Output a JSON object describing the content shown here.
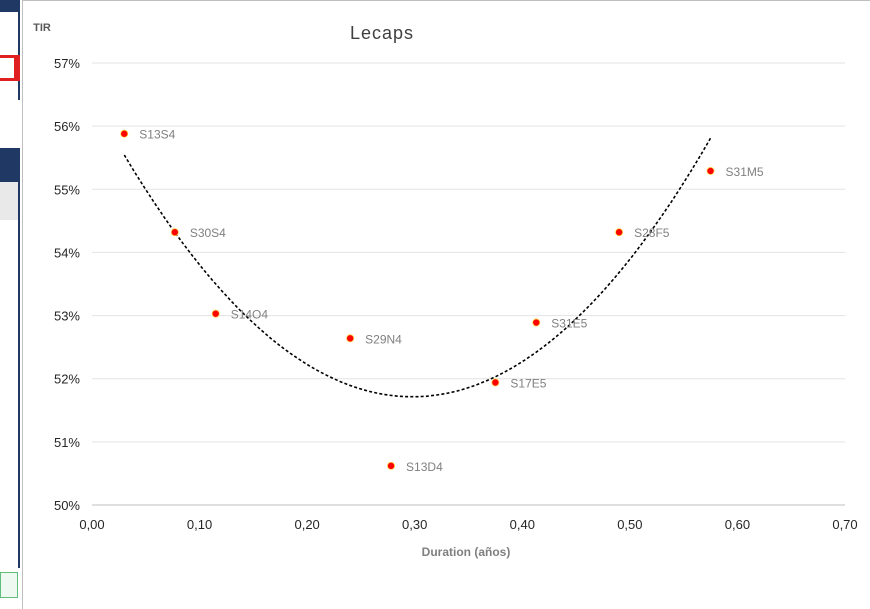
{
  "chart_data": {
    "type": "scatter",
    "title": "Lecaps",
    "ylabel": "TIR",
    "xlabel": "Duration (años)",
    "xlim": [
      0,
      0.7
    ],
    "ylim": [
      0.5,
      0.57
    ],
    "x_ticks": [
      "0,00",
      "0,10",
      "0,20",
      "0,30",
      "0,40",
      "0,50",
      "0,60",
      "0,70"
    ],
    "y_ticks": [
      "50%",
      "51%",
      "52%",
      "53%",
      "54%",
      "55%",
      "56%",
      "57%"
    ],
    "grid": "horizontal",
    "points": [
      {
        "label": "S13S4",
        "x": 0.03,
        "y": 0.5588
      },
      {
        "label": "S30S4",
        "x": 0.077,
        "y": 0.5432
      },
      {
        "label": "S14O4",
        "x": 0.115,
        "y": 0.5303
      },
      {
        "label": "S29N4",
        "x": 0.24,
        "y": 0.5264
      },
      {
        "label": "S13D4",
        "x": 0.278,
        "y": 0.5062
      },
      {
        "label": "S17E5",
        "x": 0.375,
        "y": 0.5194
      },
      {
        "label": "S31E5",
        "x": 0.413,
        "y": 0.5289
      },
      {
        "label": "S28F5",
        "x": 0.49,
        "y": 0.5432
      },
      {
        "label": "S31M5",
        "x": 0.575,
        "y": 0.5529
      }
    ],
    "trendline": {
      "type": "polynomial-2",
      "style": "dashed",
      "color": "#000000",
      "x_range": [
        0.03,
        0.575
      ]
    },
    "marker_color": "#ff0000"
  }
}
